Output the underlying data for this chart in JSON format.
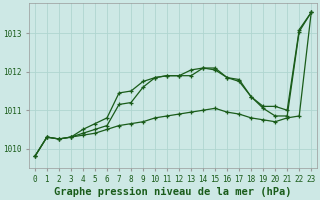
{
  "title": "Graphe pression niveau de la mer (hPa)",
  "yticks": [
    1010,
    1011,
    1012,
    1013
  ],
  "ylim": [
    1009.5,
    1013.8
  ],
  "xlim": [
    -0.5,
    23.5
  ],
  "background_color": "#cde8e5",
  "grid_color": "#b0d5d0",
  "line_color": "#1a5c1a",
  "line1_y": [
    1009.8,
    1010.3,
    1010.25,
    1010.3,
    1010.5,
    1010.65,
    1010.8,
    1011.45,
    1011.5,
    1011.75,
    1011.85,
    1011.9,
    1011.9,
    1012.05,
    1012.1,
    1012.1,
    1011.85,
    1011.8,
    1011.35,
    1011.1,
    1011.1,
    1011.0,
    1013.1,
    1013.55
  ],
  "line2_y": [
    1009.8,
    1010.3,
    1010.25,
    1010.3,
    1010.4,
    1010.5,
    1010.6,
    1011.15,
    1011.2,
    1011.6,
    1011.85,
    1011.9,
    1011.9,
    1011.9,
    1012.1,
    1012.05,
    1011.85,
    1011.75,
    1011.35,
    1011.05,
    1010.85,
    1010.85,
    1013.05,
    1013.55
  ],
  "line3_y": [
    1009.8,
    1010.3,
    1010.25,
    1010.3,
    1010.35,
    1010.4,
    1010.5,
    1010.6,
    1010.65,
    1010.7,
    1010.8,
    1010.85,
    1010.9,
    1010.95,
    1011.0,
    1011.05,
    1010.95,
    1010.9,
    1010.8,
    1010.75,
    1010.7,
    1010.8,
    1010.85,
    1013.55
  ],
  "title_fontsize": 7.5,
  "tick_fontsize": 5.5
}
